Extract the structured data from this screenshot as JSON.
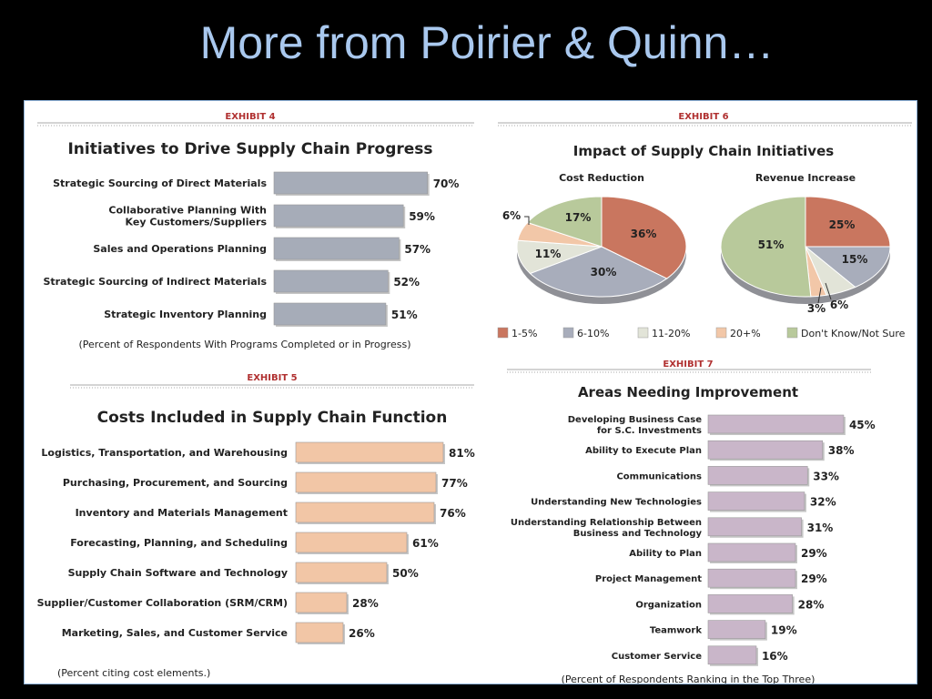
{
  "slide": {
    "title": "More from Poirier & Quinn…"
  },
  "colors": {
    "ex4_bar": "#a6acb8",
    "ex5_bar": "#f2c6a6",
    "ex7_bar": "#c9b6c9",
    "pie": [
      "#c9765f",
      "#a8adbb",
      "#e2e4d8",
      "#f2c7a8",
      "#b8c99b"
    ]
  },
  "chart_data": [
    {
      "type": "bar",
      "exhibit": "EXHIBIT 4",
      "title": "Initiatives to Drive Supply Chain Progress",
      "categories": [
        "Strategic Sourcing of Direct Materials",
        "Collaborative Planning With\nKey Customers/Suppliers",
        "Sales and Operations Planning",
        "Strategic Sourcing of Indirect Materials",
        "Strategic Inventory Planning"
      ],
      "values": [
        70,
        59,
        57,
        52,
        51
      ],
      "value_labels": [
        "70%",
        "59%",
        "57%",
        "52%",
        "51%"
      ],
      "note": "(Percent of Respondents With Programs Completed or in Progress)",
      "orientation": "horizontal"
    },
    {
      "type": "bar",
      "exhibit": "EXHIBIT 5",
      "title": "Costs Included in Supply Chain Function",
      "categories": [
        "Logistics, Transportation, and Warehousing",
        "Purchasing, Procurement, and Sourcing",
        "Inventory and Materials Management",
        "Forecasting, Planning, and Scheduling",
        "Supply Chain Software and Technology",
        "Supplier/Customer Collaboration (SRM/CRM)",
        "Marketing, Sales, and Customer Service"
      ],
      "values": [
        81,
        77,
        76,
        61,
        50,
        28,
        26
      ],
      "value_labels": [
        "81%",
        "77%",
        "76%",
        "61%",
        "50%",
        "28%",
        "26%"
      ],
      "note": "(Percent citing cost elements.)",
      "orientation": "horizontal"
    },
    {
      "type": "pie",
      "exhibit": "EXHIBIT 6",
      "title": "Impact of Supply Chain Initiatives",
      "legend": [
        "1-5%",
        "6-10%",
        "11-20%",
        "20+%",
        "Don't Know/Not Sure"
      ],
      "pies": [
        {
          "title": "Cost Reduction",
          "values": [
            36,
            30,
            11,
            6,
            17
          ],
          "labels": [
            "36%",
            "30%",
            "11%",
            "6%",
            "17%"
          ]
        },
        {
          "title": "Revenue Increase",
          "values": [
            25,
            15,
            6,
            3,
            51
          ],
          "labels": [
            "25%",
            "15%",
            "6%",
            "3%",
            "51%"
          ]
        }
      ]
    },
    {
      "type": "bar",
      "exhibit": "EXHIBIT 7",
      "title": "Areas Needing Improvement",
      "categories": [
        "Developing Business Case\nfor S.C. Investments",
        "Ability to Execute Plan",
        "Communications",
        "Understanding New Technologies",
        "Understanding Relationship Between\nBusiness and Technology",
        "Ability to Plan",
        "Project Management",
        "Organization",
        "Teamwork",
        "Customer Service"
      ],
      "values": [
        45,
        38,
        33,
        32,
        31,
        29,
        29,
        28,
        19,
        16
      ],
      "value_labels": [
        "45%",
        "38%",
        "33%",
        "32%",
        "31%",
        "29%",
        "29%",
        "28%",
        "19%",
        "16%"
      ],
      "note": "(Percent of Respondents Ranking in the Top Three)",
      "orientation": "horizontal"
    }
  ]
}
